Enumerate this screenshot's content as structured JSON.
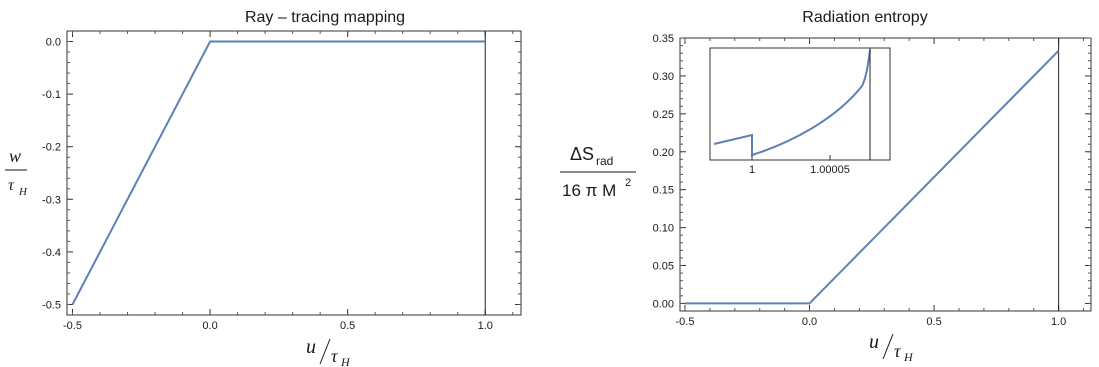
{
  "chart_data": [
    {
      "type": "line",
      "title": "Ray – tracing mapping",
      "xlabel": {
        "num": "u",
        "den": "τ",
        "den_sub": "H"
      },
      "ylabel": {
        "num": "w",
        "den": "τ",
        "den_sub": "H"
      },
      "xlim": [
        -0.52,
        1.13
      ],
      "ylim": [
        -0.52,
        0.02
      ],
      "x_ticks": [
        -0.5,
        0.0,
        0.5,
        1.0
      ],
      "x_tick_labels": [
        "-0.5",
        "0.0",
        "0.5",
        "1.0"
      ],
      "y_ticks": [
        0.0,
        -0.1,
        -0.2,
        -0.3,
        -0.4,
        -0.5
      ],
      "y_tick_labels": [
        "0.0",
        "-0.1",
        "-0.2",
        "-0.3",
        "-0.4",
        "-0.5"
      ],
      "vertical_line_x": 1.0,
      "series": [
        {
          "x": [
            -0.5,
            0.0,
            1.0
          ],
          "y": [
            -0.5,
            0.0,
            0.0
          ]
        }
      ]
    },
    {
      "type": "line",
      "title": "Radiation entropy",
      "xlabel": {
        "num": "u",
        "den": "τ",
        "den_sub": "H"
      },
      "ylabel": {
        "num": "ΔS",
        "num_sub": "rad",
        "den": "16 π M",
        "den_sup": "2"
      },
      "xlim": [
        -0.52,
        1.13
      ],
      "ylim": [
        -0.01,
        0.35
      ],
      "x_ticks": [
        -0.5,
        0.0,
        0.5,
        1.0
      ],
      "x_tick_labels": [
        "-0.5",
        "0.0",
        "0.5",
        "1.0"
      ],
      "y_ticks": [
        0.0,
        0.05,
        0.1,
        0.15,
        0.2,
        0.25,
        0.3,
        0.35
      ],
      "y_tick_labels": [
        "0.00",
        "0.05",
        "0.10",
        "0.15",
        "0.20",
        "0.25",
        "0.30",
        "0.35"
      ],
      "vertical_line_x": 1.0,
      "series": [
        {
          "x": [
            -0.5,
            0.0,
            1.0
          ],
          "y": [
            0.0,
            0.0,
            0.3333
          ]
        }
      ],
      "inset": {
        "x_tick_labels": [
          "1",
          "1.00005"
        ],
        "x_ticks": [
          1.0,
          1.00005
        ],
        "xlim": [
          0.99997,
          1.000075
        ]
      }
    }
  ],
  "colors": {
    "series": "#5e81b5",
    "axis": "#333333",
    "text": "#1a1a1a"
  }
}
